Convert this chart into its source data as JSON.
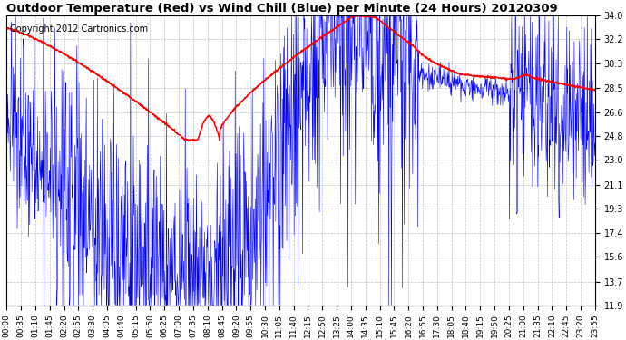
{
  "title": "Outdoor Temperature (Red) vs Wind Chill (Blue) per Minute (24 Hours) 20120309",
  "copyright": "Copyright 2012 Cartronics.com",
  "yticks": [
    11.9,
    13.7,
    15.6,
    17.4,
    19.3,
    21.1,
    23.0,
    24.8,
    26.6,
    28.5,
    30.3,
    32.2,
    34.0
  ],
  "ymin": 11.9,
  "ymax": 34.0,
  "bg_color": "#ffffff",
  "plot_bg": "#ffffff",
  "red_color": "red",
  "blue_color": "blue",
  "title_fontsize": 9.5,
  "copyright_fontsize": 7,
  "tick_label_size": 7,
  "xtick_label_size": 6.5,
  "xtick_labels": [
    "00:00",
    "00:35",
    "01:10",
    "01:45",
    "02:20",
    "02:55",
    "03:30",
    "04:05",
    "04:40",
    "05:15",
    "05:50",
    "06:25",
    "07:00",
    "07:35",
    "08:10",
    "08:45",
    "09:20",
    "09:55",
    "10:30",
    "11:05",
    "11:40",
    "12:15",
    "12:50",
    "13:25",
    "14:00",
    "14:35",
    "15:10",
    "15:45",
    "16:20",
    "16:55",
    "17:30",
    "18:05",
    "18:40",
    "19:15",
    "19:50",
    "20:25",
    "21:00",
    "21:35",
    "22:10",
    "22:45",
    "23:20",
    "23:55"
  ]
}
